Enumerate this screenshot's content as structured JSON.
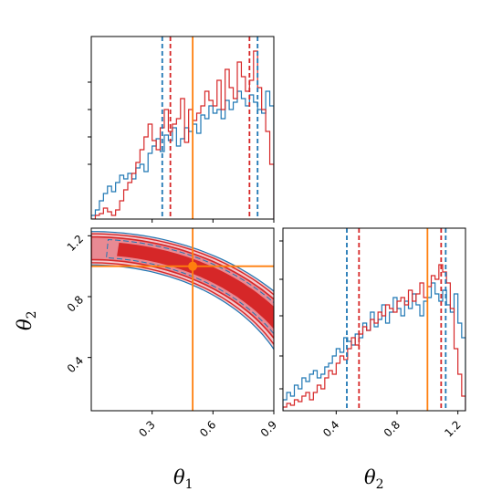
{
  "colors": {
    "blue": "#1f77b4",
    "red": "#d62728",
    "orange": "#ff7f0e",
    "red_fill_outer": "#f6c8cc",
    "red_fill_mid": "#e88a93",
    "red_fill_inner": "#d62728"
  },
  "chart_data": {
    "type": "corner",
    "parameters": [
      "θ1",
      "θ2"
    ],
    "axis_labels": {
      "x1": "θ",
      "x1_sub": "1",
      "x2": "θ",
      "x2_sub": "2",
      "y2": "θ",
      "y2_sub": "2"
    },
    "truth": {
      "theta1": 0.5,
      "theta2": 1.0
    },
    "panels": {
      "hist_theta1": {
        "xlim": [
          0.0,
          0.9
        ],
        "ticks": [
          0.3,
          0.6,
          0.9
        ],
        "ylim": [
          0,
          1.0
        ],
        "y_ticks_shown": true,
        "quantiles": {
          "blue": [
            0.35,
            0.82
          ],
          "red": [
            0.39,
            0.78
          ]
        },
        "truth_line": 0.5,
        "bins": [
          0.0,
          0.02,
          0.04,
          0.06,
          0.08,
          0.1,
          0.12,
          0.14,
          0.16,
          0.18,
          0.2,
          0.22,
          0.24,
          0.26,
          0.28,
          0.3,
          0.32,
          0.34,
          0.36,
          0.38,
          0.4,
          0.42,
          0.44,
          0.46,
          0.48,
          0.5,
          0.52,
          0.54,
          0.56,
          0.58,
          0.6,
          0.62,
          0.64,
          0.66,
          0.68,
          0.7,
          0.72,
          0.74,
          0.76,
          0.78,
          0.8,
          0.82,
          0.84,
          0.86,
          0.88,
          0.9
        ],
        "series": [
          {
            "color": "blue",
            "values": [
              0.02,
              0.05,
              0.1,
              0.14,
              0.18,
              0.15,
              0.2,
              0.24,
              0.22,
              0.25,
              0.22,
              0.28,
              0.3,
              0.26,
              0.36,
              0.4,
              0.44,
              0.37,
              0.46,
              0.43,
              0.5,
              0.4,
              0.44,
              0.5,
              0.48,
              0.52,
              0.47,
              0.57,
              0.55,
              0.62,
              0.58,
              0.6,
              0.55,
              0.65,
              0.6,
              0.64,
              0.7,
              0.66,
              0.62,
              0.68,
              0.64,
              0.6,
              0.58,
              0.7,
              0.62
            ]
          },
          {
            "color": "red",
            "values": [
              0.0,
              0.02,
              0.03,
              0.06,
              0.04,
              0.02,
              0.05,
              0.1,
              0.16,
              0.2,
              0.25,
              0.31,
              0.38,
              0.45,
              0.52,
              0.43,
              0.38,
              0.5,
              0.6,
              0.48,
              0.52,
              0.55,
              0.66,
              0.42,
              0.6,
              0.54,
              0.58,
              0.62,
              0.7,
              0.65,
              0.62,
              0.76,
              0.6,
              0.82,
              0.72,
              0.66,
              0.86,
              0.78,
              0.7,
              0.76,
              0.92,
              0.72,
              0.6,
              0.48,
              0.3
            ]
          }
        ]
      },
      "contour": {
        "xlim": [
          0.0,
          0.9
        ],
        "ylim": [
          0.05,
          1.25
        ],
        "x_ticks": [
          0.3,
          0.6,
          0.9
        ],
        "y_ticks": [
          0.4,
          0.8,
          1.2
        ],
        "curve": "theta2 = sqrt(1.25 - theta1^2)",
        "curve_width": 0.12
      },
      "hist_theta2": {
        "xlim": [
          0.05,
          1.25
        ],
        "ticks": [
          0.4,
          0.8,
          1.2
        ],
        "quantiles": {
          "blue": [
            0.47,
            1.12
          ],
          "red": [
            0.55,
            1.09
          ]
        },
        "truth_line": 1.0,
        "bins": [
          0.05,
          0.075,
          0.1,
          0.125,
          0.15,
          0.175,
          0.2,
          0.225,
          0.25,
          0.275,
          0.3,
          0.325,
          0.35,
          0.375,
          0.4,
          0.425,
          0.45,
          0.475,
          0.5,
          0.525,
          0.55,
          0.575,
          0.6,
          0.625,
          0.65,
          0.675,
          0.7,
          0.725,
          0.75,
          0.775,
          0.8,
          0.825,
          0.85,
          0.875,
          0.9,
          0.925,
          0.95,
          0.975,
          1.0,
          1.025,
          1.05,
          1.075,
          1.1,
          1.125,
          1.15,
          1.175,
          1.2,
          1.225,
          1.25
        ],
        "series": [
          {
            "color": "blue",
            "values": [
              0.06,
              0.1,
              0.08,
              0.14,
              0.12,
              0.18,
              0.16,
              0.2,
              0.22,
              0.18,
              0.2,
              0.24,
              0.26,
              0.3,
              0.34,
              0.32,
              0.4,
              0.38,
              0.36,
              0.42,
              0.4,
              0.48,
              0.44,
              0.54,
              0.46,
              0.5,
              0.58,
              0.48,
              0.54,
              0.62,
              0.56,
              0.52,
              0.6,
              0.56,
              0.64,
              0.58,
              0.52,
              0.6,
              0.62,
              0.7,
              0.64,
              0.6,
              0.66,
              0.58,
              0.54,
              0.64,
              0.48,
              0.4
            ]
          },
          {
            "color": "red",
            "values": [
              0.02,
              0.04,
              0.03,
              0.06,
              0.05,
              0.08,
              0.1,
              0.06,
              0.1,
              0.14,
              0.12,
              0.18,
              0.22,
              0.2,
              0.26,
              0.3,
              0.28,
              0.34,
              0.4,
              0.36,
              0.42,
              0.46,
              0.44,
              0.5,
              0.48,
              0.54,
              0.52,
              0.58,
              0.56,
              0.54,
              0.6,
              0.62,
              0.58,
              0.66,
              0.6,
              0.64,
              0.7,
              0.62,
              0.68,
              0.74,
              0.72,
              0.8,
              0.76,
              0.7,
              0.56,
              0.34,
              0.2,
              0.08
            ]
          }
        ]
      }
    }
  }
}
